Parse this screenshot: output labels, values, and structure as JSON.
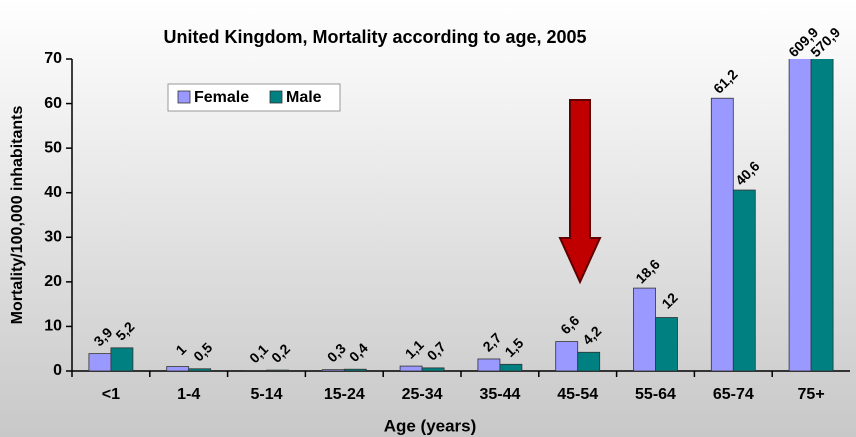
{
  "chart_data": {
    "type": "bar",
    "title": "United Kingdom, Mortality according to age, 2005",
    "x_label": "Age (years)",
    "y_label": "Mortality/100,000 inhabitants",
    "categories": [
      "<1",
      "1-4",
      "5-14",
      "15-24",
      "25-34",
      "35-44",
      "45-54",
      "55-64",
      "65-74",
      "75+"
    ],
    "series": [
      {
        "name": "Female",
        "color": "#9999ff",
        "values": [
          3.9,
          1,
          0.1,
          0.3,
          1.1,
          2.7,
          6.6,
          18.6,
          61.2,
          609.9
        ],
        "value_labels": [
          "3,9",
          "1",
          "0,1",
          "0,3",
          "1,1",
          "2,7",
          "6,6",
          "18,6",
          "61,2",
          "609,9"
        ]
      },
      {
        "name": "Male",
        "color": "#008080",
        "values": [
          5.2,
          0.5,
          0.2,
          0.4,
          0.7,
          1.5,
          4.2,
          12,
          40.6,
          570.9
        ],
        "value_labels": [
          "5,2",
          "0,5",
          "0,2",
          "0,4",
          "0,7",
          "1,5",
          "4,2",
          "12",
          "40,6",
          "570,9"
        ]
      }
    ],
    "ylim": [
      0,
      70
    ],
    "yticks": [
      0,
      10,
      20,
      30,
      40,
      50,
      60,
      70
    ],
    "legend": "upper left"
  }
}
